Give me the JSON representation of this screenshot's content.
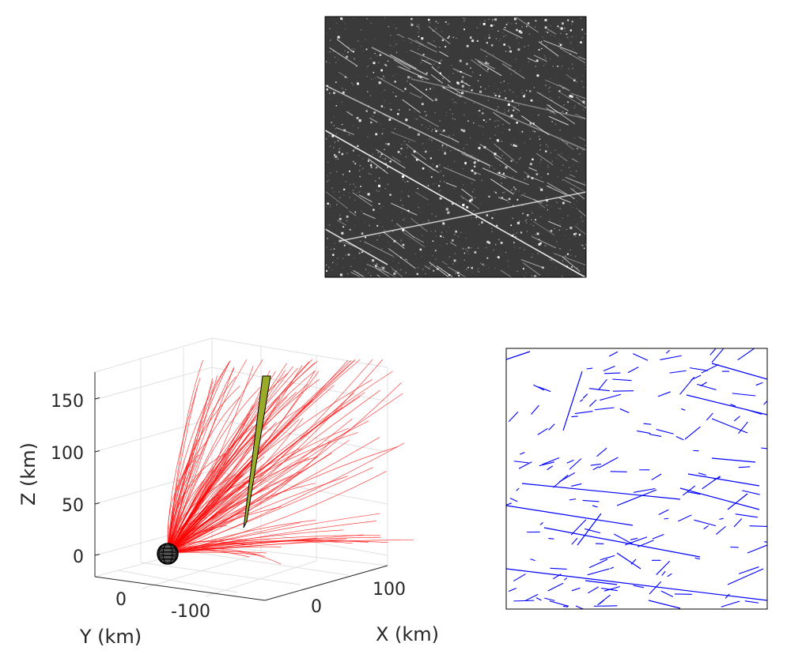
{
  "chart_data": [
    {
      "type": "image",
      "panel": "top",
      "colormap": "grayscale",
      "colors": {
        "background": "#3a3a3a",
        "streak": "#ffffff",
        "border": "#000000"
      },
      "grid": false
    },
    {
      "type": "3d-line",
      "panel": "bottom-left",
      "xlabel": "X (km)",
      "ylabel": "Y (km)",
      "zlabel": "Z (km)",
      "xticks": [
        "0",
        "100"
      ],
      "yticks": [
        "0",
        "-100"
      ],
      "zticks": [
        "0",
        "50",
        "100",
        "150"
      ],
      "zlim": [
        -20,
        180
      ],
      "grid": true,
      "colors": {
        "trajectories": "#ff0000",
        "sphere": "#000000",
        "beam": "#9aab2a",
        "grid": "#e0e0e0"
      }
    },
    {
      "type": "line-segments",
      "panel": "bottom-right",
      "colors": {
        "segments": "#0000ff",
        "border": "#000000"
      },
      "grid": false
    }
  ]
}
